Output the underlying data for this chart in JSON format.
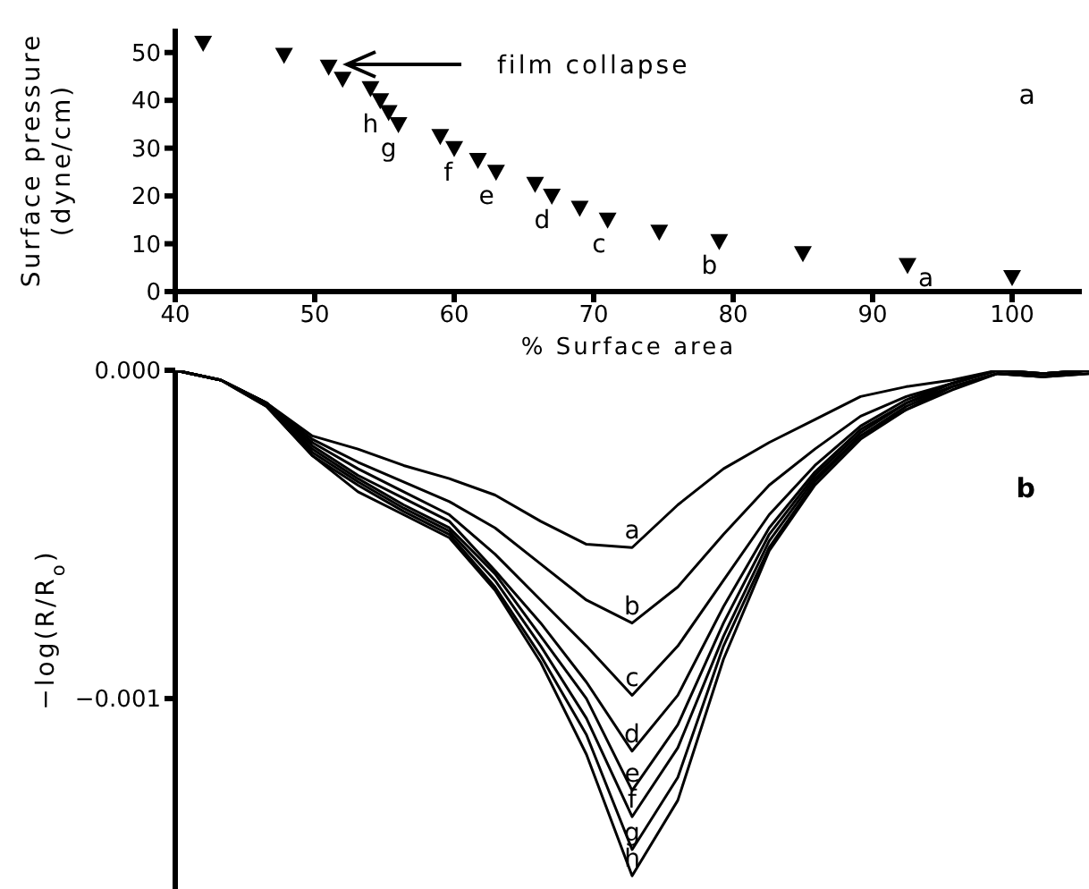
{
  "chart_data": [
    {
      "type": "scatter",
      "xlabel": "% Surface area",
      "ylabel": "Surface pressure (dyne/cm)",
      "xlim": [
        40,
        105
      ],
      "ylim": [
        0,
        55
      ],
      "xticks": [
        40,
        50,
        60,
        70,
        80,
        90,
        100
      ],
      "yticks": [
        0,
        10,
        20,
        30,
        40,
        50
      ],
      "marker": "triangle",
      "series": [
        {
          "color": "#000000",
          "x": [
            42,
            47.8,
            51,
            52,
            54,
            54.7,
            55.3,
            56,
            59,
            60,
            61.7,
            63,
            65.8,
            67,
            69,
            71,
            74.7,
            79,
            85,
            92.5,
            100
          ],
          "values": [
            52,
            49.5,
            47,
            44.5,
            42.5,
            40,
            37.5,
            35,
            32.5,
            30,
            27.5,
            25,
            22.5,
            20,
            17.5,
            15,
            12.5,
            10.5,
            8,
            5.5,
            3
          ]
        }
      ],
      "annotations": [
        "film collapse",
        {
          "text": "a",
          "x": 92.5,
          "y": 5.5
        },
        {
          "text": "b",
          "x": 79,
          "y": 10.5
        },
        {
          "text": "c",
          "x": 71,
          "y": 15
        },
        {
          "text": "d",
          "x": 67,
          "y": 20
        },
        {
          "text": "e",
          "x": 63,
          "y": 25
        },
        {
          "text": "f",
          "x": 60,
          "y": 30
        },
        {
          "text": "g",
          "x": 56,
          "y": 35
        },
        {
          "text": "h",
          "x": 54.7,
          "y": 40
        },
        "a"
      ]
    },
    {
      "type": "line",
      "ylabel": "−log(R/R$_{o}$)",
      "ylim": [
        -0.00158,
        0
      ],
      "yticks": [
        {
          "value": 0,
          "label": "0.000"
        },
        {
          "value": -0.001,
          "label": "−0.001"
        }
      ],
      "tick_labels": "y",
      "line_style": "solid",
      "categories": [
        null,
        null,
        null,
        null,
        null,
        null,
        null,
        null,
        null,
        null,
        null,
        null,
        null,
        null,
        null,
        null,
        null,
        null,
        null,
        null,
        null
      ],
      "series": [
        {
          "name": "a",
          "color": "#000000",
          "values": [
            0,
            -3e-05,
            -0.0001,
            -0.0002,
            -0.00024,
            -0.00029,
            -0.00033,
            -0.00038,
            -0.00046,
            -0.00053,
            -0.00054,
            -0.00041,
            -0.0003,
            -0.00022,
            -0.00015,
            -8e-05,
            -5e-05,
            -3e-05,
            0,
            -1e-05,
            0
          ]
        },
        {
          "name": "b",
          "color": "#000000",
          "values": [
            0,
            -3e-05,
            -0.0001,
            -0.00021,
            -0.00028,
            -0.00034,
            -0.0004,
            -0.00048,
            -0.00059,
            -0.0007,
            -0.00077,
            -0.00066,
            -0.0005,
            -0.00035,
            -0.00024,
            -0.00014,
            -8e-05,
            -4e-05,
            0,
            -1e-05,
            0
          ]
        },
        {
          "name": "c",
          "color": "#000000",
          "values": [
            0,
            -3e-05,
            -0.0001,
            -0.00022,
            -0.0003,
            -0.00037,
            -0.00044,
            -0.00056,
            -0.0007,
            -0.00084,
            -0.00099,
            -0.00084,
            -0.00064,
            -0.00044,
            -0.00029,
            -0.00017,
            -9e-05,
            -4e-05,
            0,
            -1e-05,
            0
          ]
        },
        {
          "name": "d",
          "color": "#000000",
          "values": [
            0,
            -3e-05,
            -0.0001,
            -0.00023,
            -0.00032,
            -0.00039,
            -0.00046,
            -0.00061,
            -0.00077,
            -0.00095,
            -0.00116,
            -0.00099,
            -0.00072,
            -0.00048,
            -0.00031,
            -0.00018,
            -0.0001,
            -4e-05,
            0,
            -1e-05,
            0
          ]
        },
        {
          "name": "e",
          "color": "#000000",
          "values": [
            0,
            -3e-05,
            -0.0001,
            -0.00024,
            -0.00033,
            -0.00041,
            -0.00048,
            -0.00062,
            -0.00081,
            -0.001,
            -0.00128,
            -0.00108,
            -0.00077,
            -0.0005,
            -0.00032,
            -0.00019,
            -0.0001,
            -5e-05,
            -1e-05,
            -1e-05,
            0
          ]
        },
        {
          "name": "f",
          "color": "#000000",
          "values": [
            0,
            -3e-05,
            -0.0001,
            -0.00025,
            -0.00034,
            -0.00042,
            -0.00049,
            -0.00064,
            -0.00084,
            -0.00106,
            -0.00136,
            -0.00115,
            -0.00081,
            -0.00052,
            -0.00033,
            -0.0002,
            -0.00011,
            -5e-05,
            -1e-05,
            -2e-05,
            0
          ]
        },
        {
          "name": "g",
          "color": "#000000",
          "values": [
            0,
            -3e-05,
            -0.00011,
            -0.00026,
            -0.00035,
            -0.00043,
            -0.0005,
            -0.00066,
            -0.00087,
            -0.00111,
            -0.00146,
            -0.00124,
            -0.00084,
            -0.00054,
            -0.00034,
            -0.0002,
            -0.00012,
            -5e-05,
            -1e-05,
            -2e-05,
            -1e-05
          ]
        },
        {
          "name": "h",
          "color": "#000000",
          "values": [
            0,
            -3e-05,
            -0.00011,
            -0.00026,
            -0.00037,
            -0.00044,
            -0.00051,
            -0.00067,
            -0.00089,
            -0.00117,
            -0.00154,
            -0.00131,
            -0.00088,
            -0.00055,
            -0.00035,
            -0.00021,
            -0.00012,
            -6e-05,
            -1e-05,
            -2e-05,
            -1e-05
          ]
        }
      ],
      "annotations": [
        "b"
      ]
    }
  ]
}
